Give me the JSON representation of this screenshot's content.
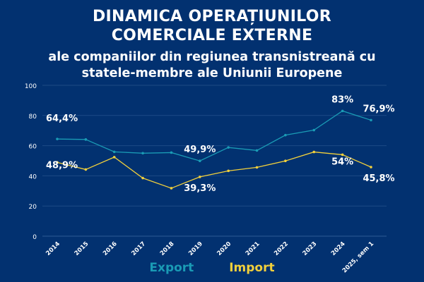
{
  "title_line1": "DINAMICA OPERAȚIUNILOR",
  "title_line2": "COMERCIALE EXTERNE",
  "subtitle_line1": "ale companiilor din regiunea transnistreană cu",
  "subtitle_line2": "statele-membre ale Uniunii Europene",
  "colors": {
    "background": "#023170",
    "export": "#1a9bb5",
    "import": "#f2d03b",
    "grid": "#1d4a85"
  },
  "chart_data": {
    "type": "line",
    "title": "DINAMICA OPERAȚIUNILOR COMERCIALE EXTERNE",
    "categories": [
      "2014",
      "2015",
      "2016",
      "2017",
      "2018",
      "2019",
      "2020",
      "2021",
      "2022",
      "2023",
      "2024",
      "2025, sem 1"
    ],
    "ylim": [
      0,
      100
    ],
    "yticks": [
      0,
      20,
      40,
      60,
      80,
      100
    ],
    "grid": true,
    "legend": "bottom",
    "series": [
      {
        "name": "Export",
        "values": [
          64.4,
          64.1,
          55.9,
          55.0,
          55.4,
          49.9,
          58.8,
          56.8,
          67.0,
          70.3,
          83,
          76.9
        ]
      },
      {
        "name": "Import",
        "values": [
          48.9,
          44.2,
          52.4,
          38.5,
          31.8,
          39.3,
          43.3,
          45.6,
          49.9,
          55.8,
          54,
          45.8
        ]
      }
    ],
    "annotations": [
      {
        "series": 0,
        "index": 0,
        "text": "64,4%",
        "pos": "above"
      },
      {
        "series": 0,
        "index": 5,
        "text": "49,9%",
        "pos": "above"
      },
      {
        "series": 0,
        "index": 10,
        "text": "83%",
        "pos": "above"
      },
      {
        "series": 0,
        "index": 11,
        "text": "76,9%",
        "pos": "above"
      },
      {
        "series": 1,
        "index": 0,
        "text": "48,9%",
        "pos": "below"
      },
      {
        "series": 1,
        "index": 5,
        "text": "39,3%",
        "pos": "below"
      },
      {
        "series": 1,
        "index": 10,
        "text": "54%",
        "pos": "below"
      },
      {
        "series": 1,
        "index": 11,
        "text": "45,8%",
        "pos": "below"
      }
    ]
  }
}
